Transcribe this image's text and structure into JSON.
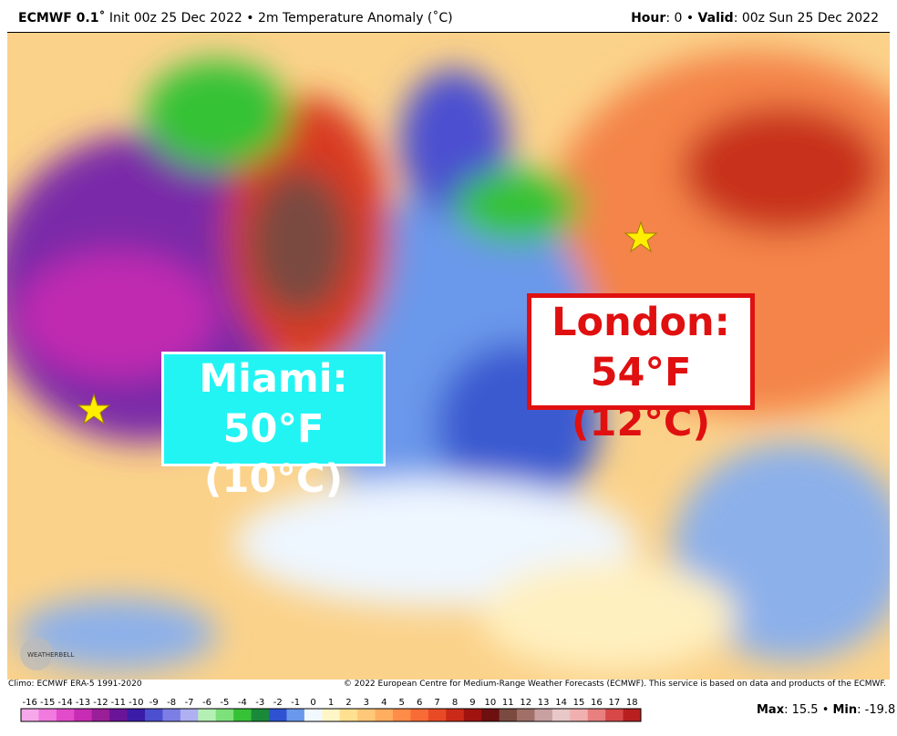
{
  "header": {
    "left": [
      {
        "text": "ECMWF 0.1˚",
        "bold": true
      },
      {
        "text": " Init 00z 25 Dec 2022 • 2m Temperature Anomaly (˚C)",
        "bold": false
      }
    ],
    "right": [
      {
        "text": "Hour",
        "bold": true
      },
      {
        "text": ": 0 • ",
        "bold": false
      },
      {
        "text": "Valid",
        "bold": true
      },
      {
        "text": ": 00z Sun 25 Dec 2022",
        "bold": false
      }
    ]
  },
  "callouts": [
    {
      "city": "Miami:",
      "temp": "50°F (10°C)"
    },
    {
      "city": "London:",
      "temp": "54°F (12°C)"
    }
  ],
  "logo": "WEATHERBELL",
  "footer": {
    "climo": "Climo: ECMWF ERA-5 1991-2020",
    "copyright": "© 2022 European Centre for Medium-Range Weather Forecasts (ECMWF). This service is based on data and products of the ECMWF."
  },
  "colorbar": {
    "ticks": [
      -16,
      -15,
      -14,
      -13,
      -12,
      -11,
      -10,
      -9,
      -8,
      -7,
      -6,
      -5,
      -4,
      -3,
      -2,
      -1,
      0,
      1,
      2,
      3,
      4,
      5,
      6,
      7,
      8,
      9,
      10,
      11,
      12,
      13,
      14,
      15,
      16,
      17,
      18
    ],
    "colors": [
      "#f6a8ea",
      "#f07ade",
      "#e24ccb",
      "#c82bb4",
      "#9a1e98",
      "#6a1498",
      "#3a1ca8",
      "#4b4fd0",
      "#7c7ee6",
      "#aeb0f2",
      "#b4f0b4",
      "#7ee07a",
      "#36c236",
      "#1a8a3a",
      "#2f52d2",
      "#6a98ea",
      "#f2f8ff",
      "#fff6c8",
      "#ffe090",
      "#ffc878",
      "#ffae60",
      "#ff8c48",
      "#f86a36",
      "#e84a26",
      "#cc2a18",
      "#a01410",
      "#6e1010",
      "#7a4a40",
      "#a07068",
      "#c8a0a0",
      "#e8c8c8",
      "#f0b0b0",
      "#e88080",
      "#d84848",
      "#b82020"
    ]
  },
  "stats": [
    {
      "text": "Max",
      "bold": true
    },
    {
      "text": ": 15.5 • ",
      "bold": false
    },
    {
      "text": "Min",
      "bold": true
    },
    {
      "text": ": -19.8",
      "bold": false
    }
  ]
}
